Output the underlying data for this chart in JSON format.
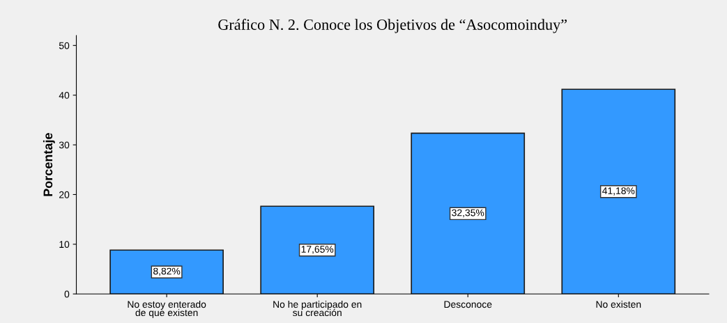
{
  "chart_data": {
    "type": "bar",
    "title": "Gráfico N. 2. Conoce los Objetivos de “Asocomoinduy”",
    "ylabel": "Porcentaje",
    "categories": [
      "No estoy enterado\nde que existen",
      "No he participado en\nsu creación",
      "Desconoce",
      "No existen"
    ],
    "values": [
      8.82,
      17.65,
      32.35,
      41.18
    ],
    "value_labels": [
      "8,82%",
      "17,65%",
      "32,35%",
      "41,18%"
    ],
    "color": "#3399ff",
    "ylim": [
      0,
      52
    ],
    "yticks": [
      0,
      10,
      20,
      30,
      40,
      50
    ],
    "grid": false,
    "legend": false
  }
}
